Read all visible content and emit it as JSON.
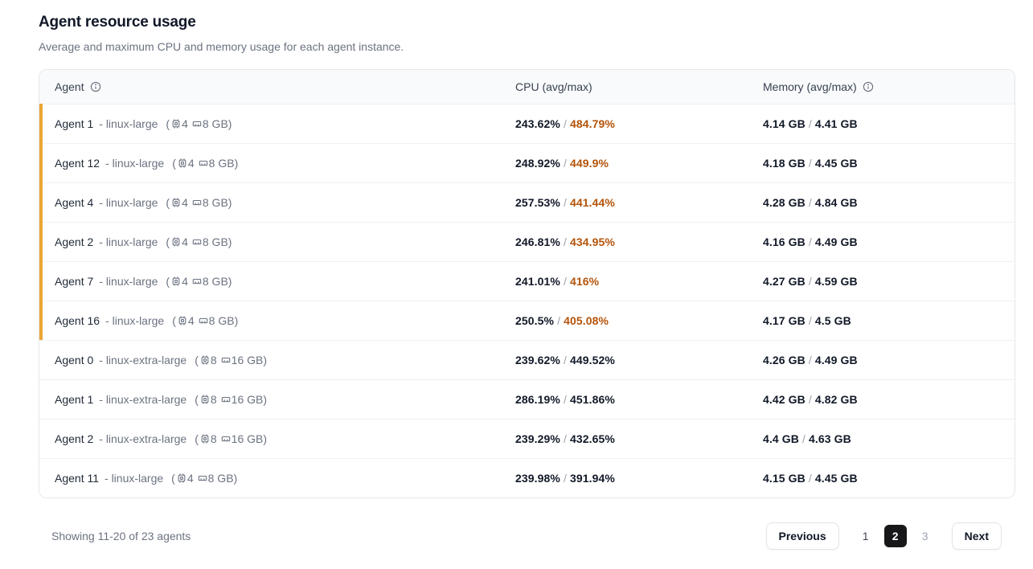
{
  "page": {
    "title": "Agent resource usage",
    "subtitle": "Average and maximum CPU and memory usage for each agent instance."
  },
  "glyphs": {
    "dash": "-",
    "slash": "/",
    "paren_open": "(",
    "paren_close": ")"
  },
  "table": {
    "columns": [
      {
        "label": "Agent",
        "info": true
      },
      {
        "label": "CPU (avg/max)",
        "info": false
      },
      {
        "label": "Memory (avg/max)",
        "info": true
      }
    ],
    "rows": [
      {
        "name": "Agent 1",
        "type": "linux-large",
        "cpus": "4",
        "mem": "8 GB",
        "cpu_avg": "243.62%",
        "cpu_max": "484.79%",
        "mem_avg": "4.14 GB",
        "mem_max": "4.41 GB",
        "flagged": true
      },
      {
        "name": "Agent 12",
        "type": "linux-large",
        "cpus": "4",
        "mem": "8 GB",
        "cpu_avg": "248.92%",
        "cpu_max": "449.9%",
        "mem_avg": "4.18 GB",
        "mem_max": "4.45 GB",
        "flagged": true
      },
      {
        "name": "Agent 4",
        "type": "linux-large",
        "cpus": "4",
        "mem": "8 GB",
        "cpu_avg": "257.53%",
        "cpu_max": "441.44%",
        "mem_avg": "4.28 GB",
        "mem_max": "4.84 GB",
        "flagged": true
      },
      {
        "name": "Agent 2",
        "type": "linux-large",
        "cpus": "4",
        "mem": "8 GB",
        "cpu_avg": "246.81%",
        "cpu_max": "434.95%",
        "mem_avg": "4.16 GB",
        "mem_max": "4.49 GB",
        "flagged": true
      },
      {
        "name": "Agent 7",
        "type": "linux-large",
        "cpus": "4",
        "mem": "8 GB",
        "cpu_avg": "241.01%",
        "cpu_max": "416%",
        "mem_avg": "4.27 GB",
        "mem_max": "4.59 GB",
        "flagged": true
      },
      {
        "name": "Agent 16",
        "type": "linux-large",
        "cpus": "4",
        "mem": "8 GB",
        "cpu_avg": "250.5%",
        "cpu_max": "405.08%",
        "mem_avg": "4.17 GB",
        "mem_max": "4.5 GB",
        "flagged": true
      },
      {
        "name": "Agent 0",
        "type": "linux-extra-large",
        "cpus": "8",
        "mem": "16 GB",
        "cpu_avg": "239.62%",
        "cpu_max": "449.52%",
        "mem_avg": "4.26 GB",
        "mem_max": "4.49 GB",
        "flagged": false
      },
      {
        "name": "Agent 1",
        "type": "linux-extra-large",
        "cpus": "8",
        "mem": "16 GB",
        "cpu_avg": "286.19%",
        "cpu_max": "451.86%",
        "mem_avg": "4.42 GB",
        "mem_max": "4.82 GB",
        "flagged": false
      },
      {
        "name": "Agent 2",
        "type": "linux-extra-large",
        "cpus": "8",
        "mem": "16 GB",
        "cpu_avg": "239.29%",
        "cpu_max": "432.65%",
        "mem_avg": "4.4 GB",
        "mem_max": "4.63 GB",
        "flagged": false
      },
      {
        "name": "Agent 11",
        "type": "linux-large",
        "cpus": "4",
        "mem": "8 GB",
        "cpu_avg": "239.98%",
        "cpu_max": "391.94%",
        "mem_avg": "4.15 GB",
        "mem_max": "4.45 GB",
        "flagged": false
      }
    ]
  },
  "footer": {
    "showing": "Showing 11-20 of 23 agents",
    "previous_label": "Previous",
    "next_label": "Next",
    "pages": [
      "1",
      "2",
      "3"
    ],
    "active_page": "2"
  },
  "colors": {
    "accent_bar": "#eaa634",
    "over_threshold_text": "#b45309",
    "active_page_bg": "#18181b",
    "header_bg": "#f9fafb",
    "border": "#e5e7eb"
  }
}
